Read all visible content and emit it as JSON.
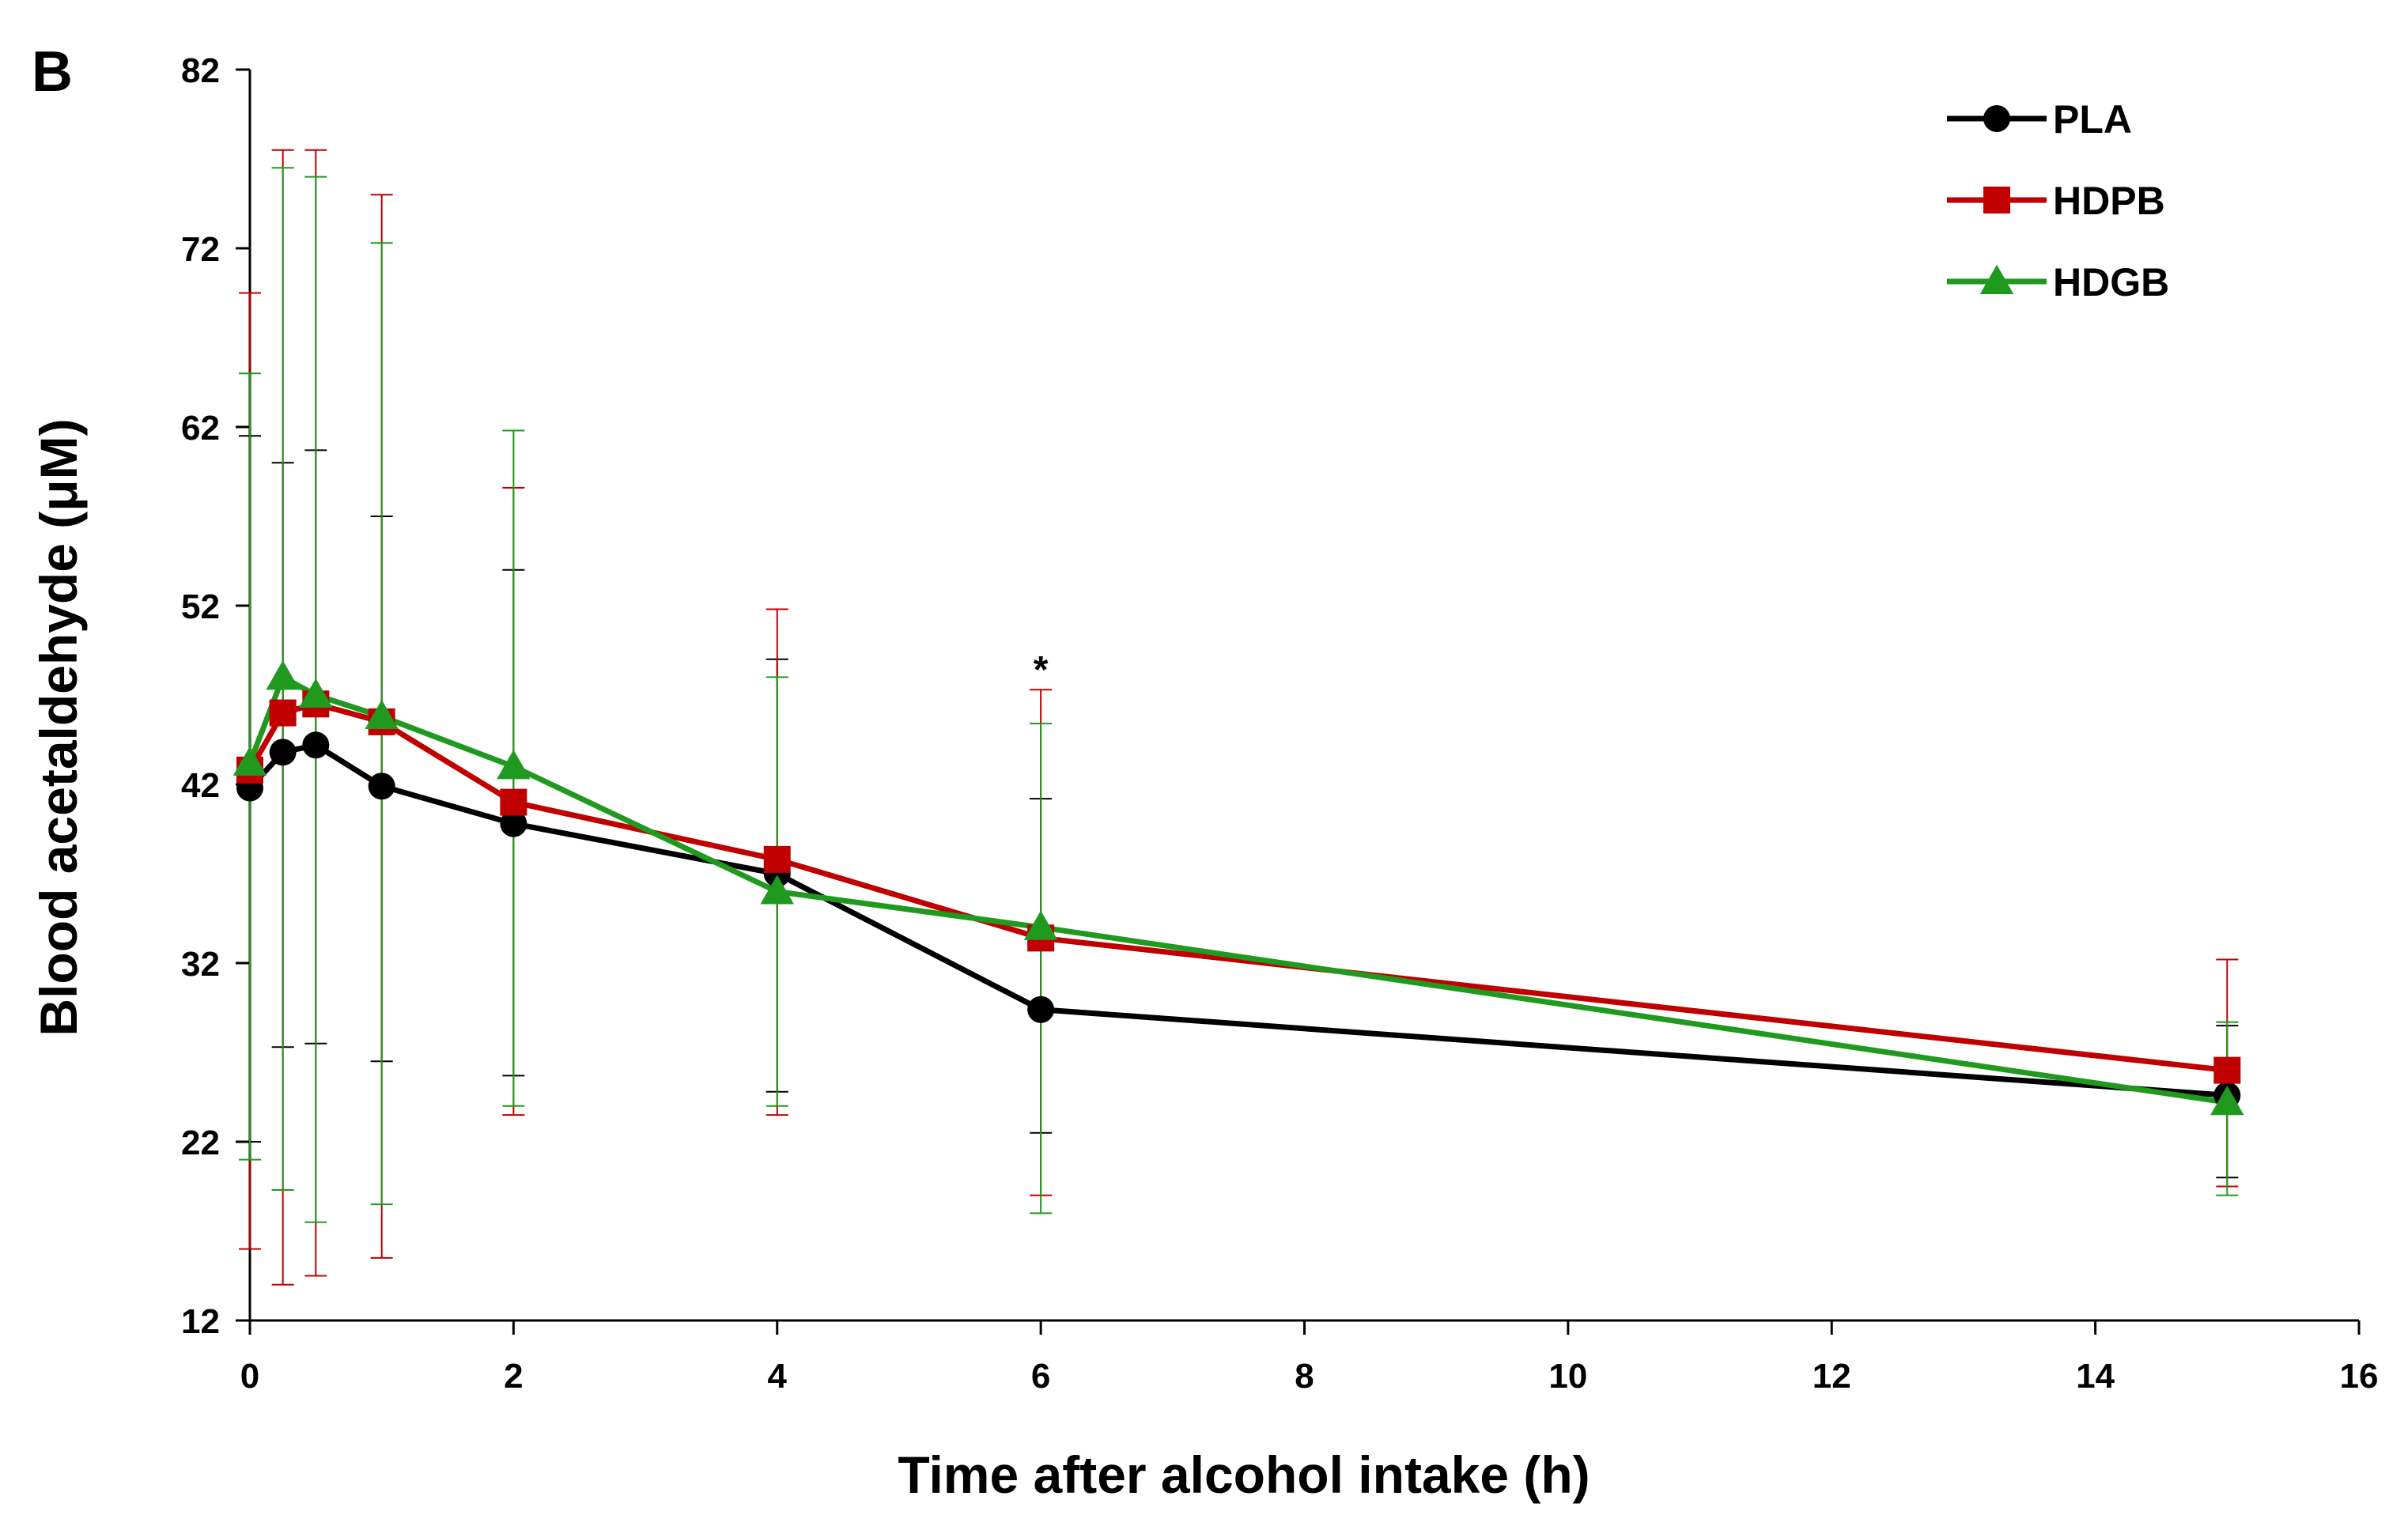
{
  "chart_data": {
    "type": "line",
    "panel_label": "B",
    "title": "",
    "xlabel": "Time after alcohol intake (h)",
    "ylabel": "Blood acetaldehyde (μM)",
    "xlim": [
      0,
      16
    ],
    "ylim": [
      12,
      82
    ],
    "xticks": [
      0,
      2,
      4,
      6,
      8,
      10,
      12,
      14,
      16
    ],
    "yticks": [
      12,
      22,
      32,
      42,
      52,
      62,
      72,
      82
    ],
    "grid": false,
    "legend_position": "top-right",
    "x": [
      0,
      0.25,
      0.5,
      1,
      2,
      4,
      6,
      15
    ],
    "series": [
      {
        "name": "PLA",
        "color": "#000000",
        "marker": "circle",
        "values": [
          41.8,
          43.8,
          44.2,
          41.9,
          39.8,
          37.0,
          29.4,
          24.6
        ],
        "err_upper": [
          61.5,
          60.0,
          60.7,
          57.0,
          54.0,
          49.0,
          41.2,
          28.5
        ],
        "err_lower": [
          22.0,
          27.3,
          27.5,
          26.5,
          25.7,
          24.8,
          22.5,
          20.0
        ]
      },
      {
        "name": "HDPB",
        "color": "#C00000",
        "marker": "square",
        "values": [
          42.8,
          46.0,
          46.5,
          45.5,
          41.0,
          37.8,
          33.4,
          26.0
        ],
        "err_upper": [
          69.5,
          77.5,
          77.5,
          75.0,
          58.6,
          51.8,
          47.3,
          32.2
        ],
        "err_lower": [
          16.0,
          14.0,
          14.5,
          15.5,
          23.5,
          23.5,
          19.0,
          19.5
        ]
      },
      {
        "name": "HDGB",
        "color": "#1F9A1F",
        "marker": "triangle",
        "values": [
          43.2,
          48.0,
          47.0,
          45.8,
          43.0,
          36.0,
          34.0,
          24.2
        ],
        "err_upper": [
          65.0,
          76.5,
          76.0,
          72.3,
          61.8,
          48.0,
          45.4,
          28.7
        ],
        "err_lower": [
          21.0,
          19.3,
          17.5,
          18.5,
          24.0,
          24.0,
          18.0,
          19.0
        ]
      }
    ],
    "annotations": [
      {
        "text": "*",
        "x": 6,
        "y": 48.5
      }
    ]
  }
}
